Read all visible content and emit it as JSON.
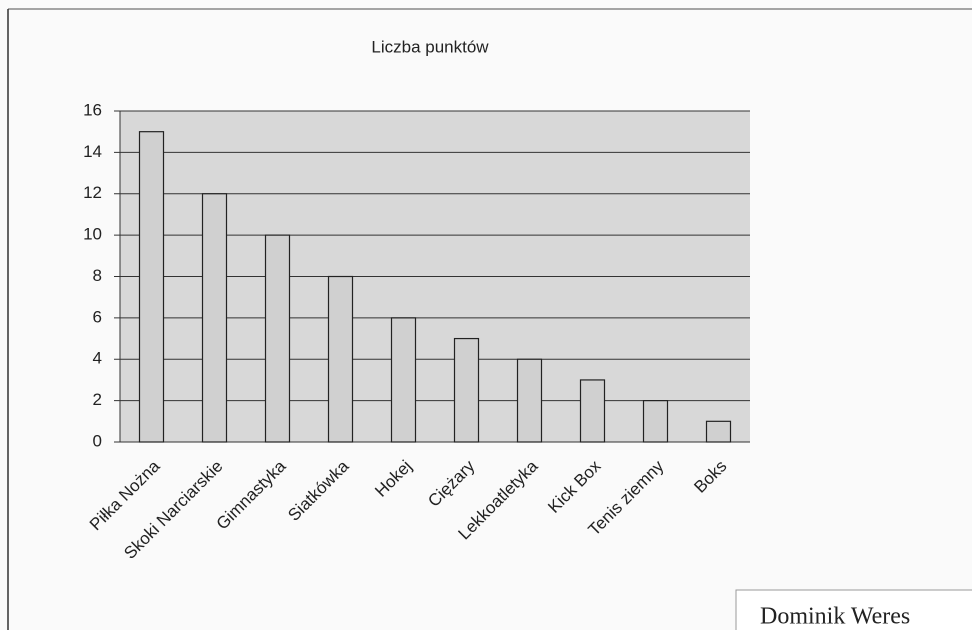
{
  "chart_data": {
    "type": "bar",
    "title": "Liczba punktów",
    "categories": [
      "Piłka Nożna",
      "Skoki Narciarskie",
      "Gimnastyka",
      "Siatkówka",
      "Hokej",
      "Ciężary",
      "Lekkoatletyka",
      "Kick Box",
      "Tenis ziemny",
      "Boks"
    ],
    "values": [
      15,
      12,
      10,
      8,
      6,
      5,
      4,
      3,
      2,
      1
    ],
    "color": "#d0d0d0",
    "ylim": [
      0,
      16
    ],
    "yticks": [
      0,
      2,
      4,
      6,
      8,
      10,
      12,
      14,
      16
    ],
    "grid": true
  },
  "author": "Dominik Weres"
}
